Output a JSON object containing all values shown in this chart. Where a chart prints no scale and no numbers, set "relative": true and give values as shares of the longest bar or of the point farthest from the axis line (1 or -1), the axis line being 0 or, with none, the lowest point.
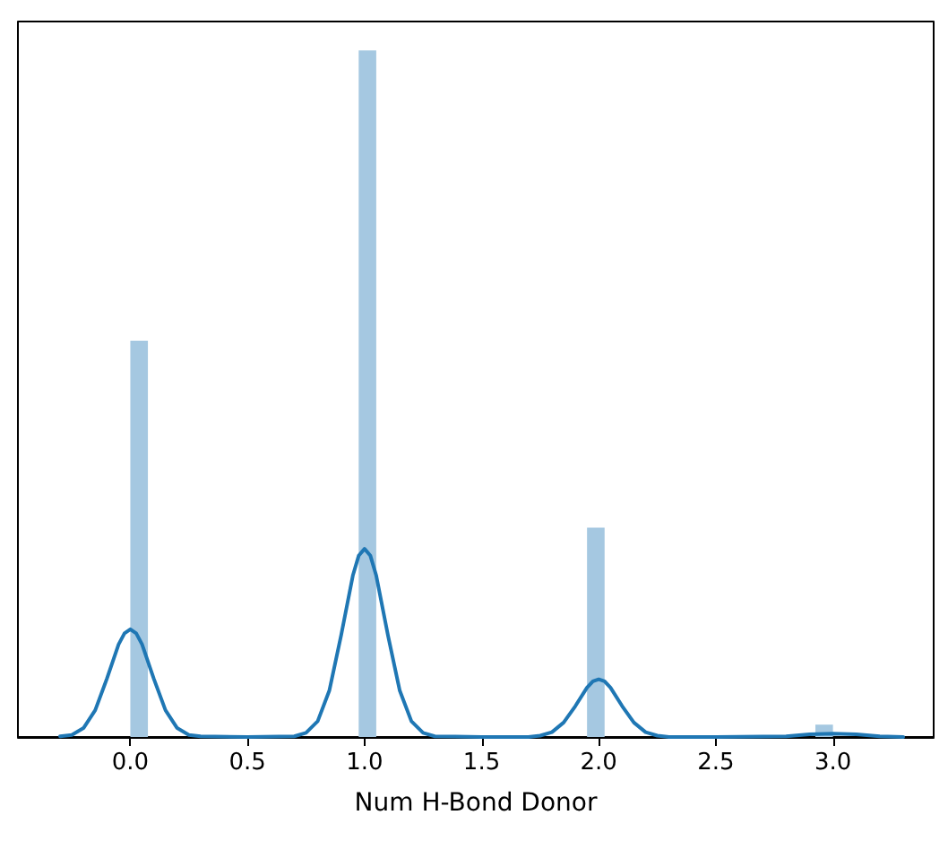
{
  "chart_data": {
    "type": "histogram",
    "relative": true,
    "xlabel": "Num H-Bond Donor",
    "color": "#a5c8e1",
    "bins": [
      0,
      0.075,
      0.15,
      0.225,
      0.3,
      0.375,
      0.45,
      0.525,
      0.6,
      0.675,
      0.75,
      0.825,
      0.9,
      0.975,
      1.05,
      1.125,
      1.2,
      1.275,
      1.35,
      1.425,
      1.5,
      1.575,
      1.65,
      1.725,
      1.8,
      1.875,
      1.95,
      2.025,
      2.1,
      2.175,
      2.25,
      2.325,
      2.4,
      2.475,
      2.55,
      2.625,
      2.7,
      2.775,
      2.85,
      2.925,
      3.0
    ],
    "values": [
      0.577,
      0,
      0,
      0,
      0,
      0,
      0,
      0,
      0,
      0,
      0,
      0,
      0,
      1,
      0,
      0,
      0,
      0,
      0,
      0,
      0,
      0,
      0,
      0,
      0,
      0,
      0.305,
      0,
      0,
      0,
      0,
      0,
      0,
      0,
      0,
      0,
      0,
      0,
      0,
      0.018
    ],
    "series": [
      {
        "type": "line",
        "color": "#1f77b4",
        "x": [
          -0.3,
          -0.25,
          -0.2,
          -0.15,
          -0.1,
          -0.05,
          -0.025,
          0,
          0.025,
          0.05,
          0.1,
          0.15,
          0.2,
          0.25,
          0.3,
          0.5,
          0.7,
          0.75,
          0.8,
          0.85,
          0.9,
          0.95,
          0.975,
          1.0,
          1.025,
          1.05,
          1.1,
          1.15,
          1.2,
          1.25,
          1.3,
          1.5,
          1.7,
          1.75,
          1.8,
          1.85,
          1.9,
          1.95,
          1.975,
          2.0,
          2.025,
          2.05,
          2.1,
          2.15,
          2.2,
          2.25,
          2.3,
          2.5,
          2.8,
          2.9,
          3.0,
          3.1,
          3.2,
          3.3
        ],
        "values": [
          0.001,
          0.003,
          0.013,
          0.039,
          0.085,
          0.135,
          0.151,
          0.157,
          0.151,
          0.135,
          0.085,
          0.039,
          0.013,
          0.003,
          0.001,
          0,
          0.001,
          0.006,
          0.023,
          0.068,
          0.148,
          0.235,
          0.264,
          0.274,
          0.264,
          0.235,
          0.148,
          0.068,
          0.023,
          0.006,
          0.001,
          0,
          0,
          0.002,
          0.007,
          0.021,
          0.045,
          0.072,
          0.081,
          0.084,
          0.081,
          0.072,
          0.045,
          0.021,
          0.007,
          0.002,
          0,
          0,
          0.001,
          0.004,
          0.005,
          0.004,
          0.001,
          0
        ]
      }
    ],
    "xlim": [
      -0.48,
      3.43
    ],
    "xticks": [
      {
        "value": 0,
        "label": "0.0"
      },
      {
        "value": 0.5,
        "label": "0.5"
      },
      {
        "value": 1,
        "label": "1.0"
      },
      {
        "value": 1.5,
        "label": "1.5"
      },
      {
        "value": 2,
        "label": "2.0"
      },
      {
        "value": 2.5,
        "label": "2.5"
      },
      {
        "value": 3,
        "label": "3.0"
      }
    ]
  }
}
